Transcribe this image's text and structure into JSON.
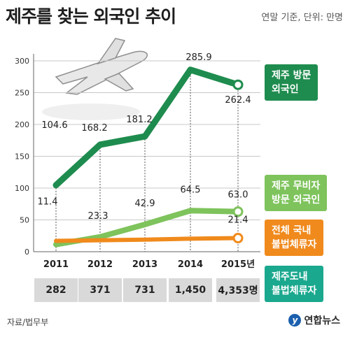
{
  "title": "제주를 찾는 외국인 추이",
  "subtitle": "연말 기준, 단위: 만명",
  "source": "자료/법무부",
  "logo": "연합뉴스",
  "logo_mark": "y",
  "colors": {
    "visitors": "#1e8c4e",
    "visa_free": "#7ec35c",
    "illegal_national": "#f08a1c",
    "illegal_jeju": "#1aa88e",
    "table_bg": "#d9d9d9"
  },
  "chart_data": {
    "type": "line",
    "categories": [
      "2011",
      "2012",
      "2013",
      "2014",
      "2015년"
    ],
    "ylim": [
      0,
      300
    ],
    "yticks": [
      "0",
      "50",
      "100",
      "150",
      "200",
      "250",
      "300"
    ],
    "series": [
      {
        "name": "제주 방문 외국인",
        "values": [
          104.6,
          168.2,
          181.2,
          285.9,
          262.4
        ],
        "labels": [
          "104.6",
          "168.2",
          "181.2",
          "285.9",
          "262.4"
        ]
      },
      {
        "name": "제주 무비자 방문 외국인",
        "values": [
          11.4,
          23.3,
          42.9,
          64.5,
          63.0
        ],
        "labels": [
          "11.4",
          "23.3",
          "42.9",
          "64.5",
          "63.0"
        ]
      },
      {
        "name": "전체 국내 불법체류자",
        "values": [
          17,
          18,
          19,
          20.5,
          21.4
        ],
        "labels": [
          "",
          "",
          "",
          "",
          "21.4"
        ]
      }
    ],
    "table": {
      "name": "제주도내 불법체류자",
      "values": [
        "282",
        "371",
        "731",
        "1,450",
        "4,353명"
      ]
    }
  },
  "legend": {
    "visitors": [
      "제주 방문",
      "외국인"
    ],
    "visa_free": [
      "제주 무비자",
      "방문 외국인"
    ],
    "illegal_national": [
      "전체 국내",
      "불법체류자"
    ],
    "illegal_jeju": [
      "제주도내",
      "불법체류자"
    ]
  }
}
